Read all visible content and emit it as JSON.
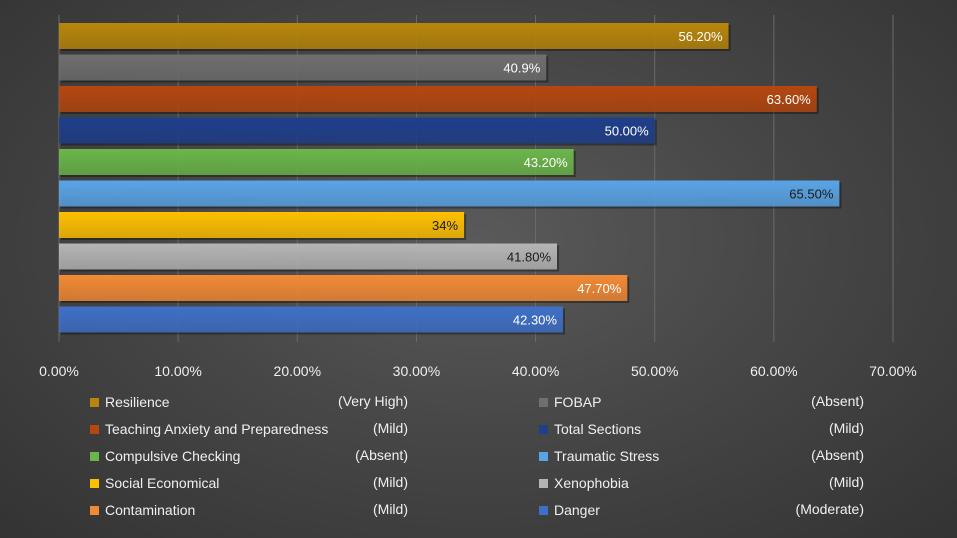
{
  "chart_data": {
    "type": "bar",
    "orientation": "horizontal",
    "grid": true,
    "legend_position": "bottom",
    "xlim": [
      0,
      0.7
    ],
    "x_ticks": [
      "0.00%",
      "10.00%",
      "20.00%",
      "30.00%",
      "40.00%",
      "50.00%",
      "60.00%",
      "70.00%"
    ],
    "categories": [
      {
        "name": "Resilience",
        "level": "(Very High)",
        "value": 0.562,
        "label": "56.20%",
        "color": "#b8860b",
        "label_color": "#ffffff"
      },
      {
        "name": "FOBAP",
        "level": "(Absent)",
        "value": 0.409,
        "label": "40.9%",
        "color": "#6f6f6f",
        "label_color": "#ffffff"
      },
      {
        "name": "Teaching Anxiety and Preparedness",
        "level": "(Mild)",
        "value": 0.636,
        "label": "63.60%",
        "color": "#b5470f",
        "label_color": "#ffffff"
      },
      {
        "name": "Total Sections",
        "level": "(Mild)",
        "value": 0.5,
        "label": "50.00%",
        "color": "#1f3f8c",
        "label_color": "#ffffff"
      },
      {
        "name": "Compulsive Checking",
        "level": "(Absent)",
        "value": 0.432,
        "label": "43.20%",
        "color": "#6bb64a",
        "label_color": "#ffffff"
      },
      {
        "name": "Traumatic Stress",
        "level": "(Absent)",
        "value": 0.655,
        "label": "65.50%",
        "color": "#5aa4e6",
        "label_color": "#1a1a1a"
      },
      {
        "name": "Social Economical",
        "level": "(Mild)",
        "value": 0.34,
        "label": "34%",
        "color": "#ffc000",
        "label_color": "#1a1a1a"
      },
      {
        "name": "Xenophobia",
        "level": "(Mild)",
        "value": 0.418,
        "label": "41.80%",
        "color": "#b5b5b5",
        "label_color": "#1a1a1a"
      },
      {
        "name": "Contamination",
        "level": "(Mild)",
        "value": 0.477,
        "label": "47.70%",
        "color": "#f28a35",
        "label_color": "#ffffff"
      },
      {
        "name": "Danger",
        "level": "(Moderate)",
        "value": 0.423,
        "label": "42.30%",
        "color": "#3f70c8",
        "label_color": "#ffffff"
      }
    ]
  }
}
